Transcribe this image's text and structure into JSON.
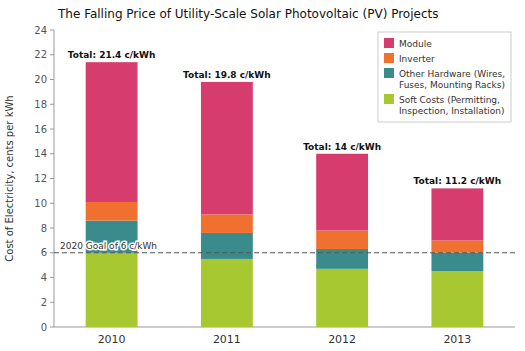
{
  "chart_data": {
    "type": "bar",
    "stacked": true,
    "title": "The Falling Price of Utility-Scale Solar Photovoltaic (PV) Projects",
    "ylabel": "Cost of Electricity, cents per kWh",
    "categories": [
      "2010",
      "2011",
      "2012",
      "2013"
    ],
    "series": [
      {
        "name": "Soft Costs (Permitting,\nInspection, Installation)",
        "color": "#a8c832",
        "values": [
          6.0,
          5.5,
          4.7,
          4.5
        ]
      },
      {
        "name": "Other Hardware (Wires,\nFuses, Mounting Racks)",
        "color": "#3a8c8c",
        "values": [
          2.6,
          2.1,
          1.6,
          1.5
        ]
      },
      {
        "name": "Inverter",
        "color": "#f07030",
        "values": [
          1.5,
          1.5,
          1.5,
          1.0
        ]
      },
      {
        "name": "Module",
        "color": "#d63c6e",
        "values": [
          11.3,
          10.7,
          6.2,
          4.2
        ]
      }
    ],
    "totals": {
      "values": [
        21.4,
        19.8,
        14,
        11.2
      ],
      "value_labels": [
        "Total: 21.4 c/kWh",
        "Total: 19.8 c/kWh",
        "Total: 14 c/kWh",
        "Total: 11.2 c/kWh"
      ]
    },
    "annotations": [
      {
        "label": "2020 Goal of 6 c/kWh",
        "value": 6.0
      }
    ],
    "ylim": [
      0,
      24
    ],
    "yticks": [
      0,
      2,
      4,
      6,
      8,
      10,
      12,
      14,
      16,
      18,
      20,
      22,
      24
    ],
    "grid": false,
    "legend": "upper right"
  }
}
